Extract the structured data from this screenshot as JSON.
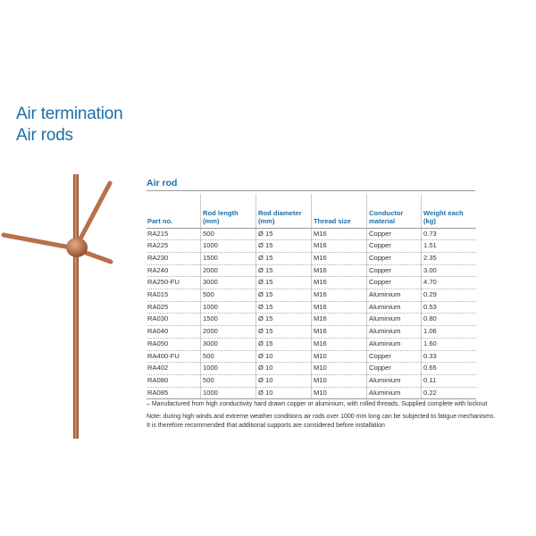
{
  "titles": {
    "line1": "Air termination",
    "line2": "Air rods"
  },
  "image": {
    "description_icon": "air-rod-product-photo-icon",
    "color": "#b8704a"
  },
  "table": {
    "caption": "Air rod",
    "headers": [
      "Part no.",
      "Rod length (mm)",
      "Rod diameter (mm)",
      "Thread size",
      "Conductor material",
      "Weight each (kg)"
    ],
    "rows": [
      [
        "RA215",
        "500",
        "Ø 15",
        "M16",
        "Copper",
        "0.73"
      ],
      [
        "RA225",
        "1000",
        "Ø 15",
        "M16",
        "Copper",
        "1.51"
      ],
      [
        "RA230",
        "1500",
        "Ø 15",
        "M16",
        "Copper",
        "2.35"
      ],
      [
        "RA240",
        "2000",
        "Ø 15",
        "M16",
        "Copper",
        "3.00"
      ],
      [
        "RA250-FU",
        "3000",
        "Ø 15",
        "M16",
        "Copper",
        "4.70"
      ],
      [
        "RA015",
        "500",
        "Ø 15",
        "M16",
        "Aluminium",
        "0.29"
      ],
      [
        "RA025",
        "1000",
        "Ø 15",
        "M16",
        "Aluminium",
        "0.53"
      ],
      [
        "RA030",
        "1500",
        "Ø 15",
        "M16",
        "Aluminium",
        "0.80"
      ],
      [
        "RA040",
        "2000",
        "Ø 15",
        "M16",
        "Aluminium",
        "1.06"
      ],
      [
        "RA050",
        "3000",
        "Ø 15",
        "M16",
        "Aluminium",
        "1.60"
      ],
      [
        "RA400-FU",
        "500",
        "Ø 10",
        "M10",
        "Copper",
        "0.33"
      ],
      [
        "RA402",
        "1000",
        "Ø 10",
        "M10",
        "Copper",
        "0.65"
      ],
      [
        "RA080",
        "500",
        "Ø 10",
        "M10",
        "Aluminium",
        "0.11"
      ],
      [
        "RA085",
        "1000",
        "Ø 10",
        "M10",
        "Aluminium",
        "0.22"
      ]
    ]
  },
  "notes": {
    "footnote": "– Manufactured from high conductivity hard drawn copper or aluminium, with rolled threads. Supplied complete with locknut",
    "note_line1": "Note: during high winds and extreme weather conditions air rods over 1000 mm long can be subjected to fatigue mechanisms.",
    "note_line2": "It is therefore recommended that additional supports are considered before installation"
  },
  "colors": {
    "heading_blue": "#1a6fa8",
    "copper": "#b8704a"
  }
}
